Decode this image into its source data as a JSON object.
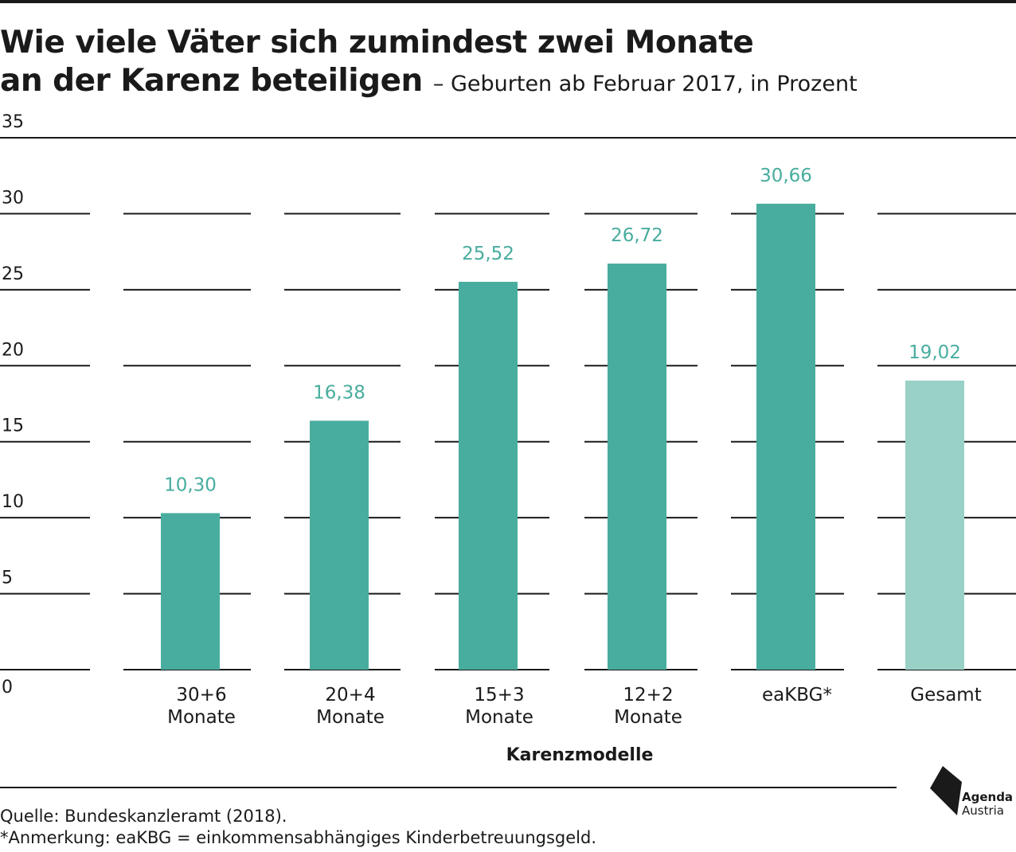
{
  "header": {
    "title_line1": "Wie viele Väter sich zumindest zwei Monate",
    "title_line2": "an der Karenz beteiligen",
    "subtitle": "– Geburten ab Februar 2017, in Prozent"
  },
  "chart_data": {
    "type": "bar",
    "title": "Wie viele Väter sich zumindest zwei Monate an der Karenz beteiligen",
    "subtitle": "– Geburten ab Februar 2017, in Prozent",
    "xlabel": "Karenzmodelle",
    "ylabel": "",
    "ylim": [
      0,
      35
    ],
    "yticks": [
      0,
      5,
      10,
      15,
      20,
      25,
      30,
      35
    ],
    "grid": true,
    "categories": [
      [
        "30+6",
        "Monate"
      ],
      [
        "20+4",
        "Monate"
      ],
      [
        "15+3",
        "Monate"
      ],
      [
        "12+2",
        "Monate"
      ],
      [
        "eaKBG*"
      ],
      [
        "Gesamt"
      ]
    ],
    "values": [
      10.3,
      16.38,
      25.52,
      26.72,
      30.66,
      19.02
    ],
    "value_labels": [
      "10,30",
      "16,38",
      "25,52",
      "26,72",
      "30,66",
      "19,02"
    ],
    "colors": [
      "#48ad9e",
      "#48ad9e",
      "#48ad9e",
      "#48ad9e",
      "#48ad9e",
      "#99d1c6"
    ],
    "label_color": "#48ad9e"
  },
  "footer": {
    "source": "Quelle: Bundeskanzleramt (2018).",
    "note": "*Anmerkung: eaKBG = einkommensabhängiges Kinderbetreuungsgeld."
  },
  "logo": {
    "line1": "Agenda",
    "line2": "Austria"
  }
}
